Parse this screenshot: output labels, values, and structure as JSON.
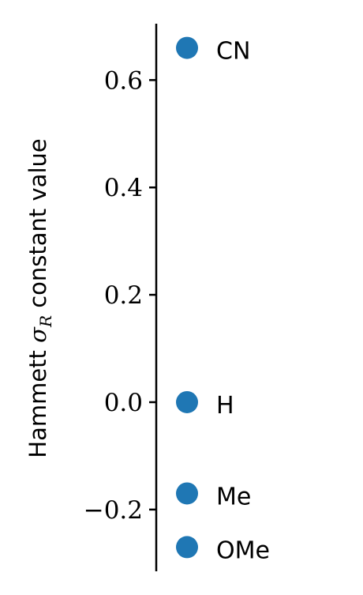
{
  "chart_data": {
    "type": "scatter",
    "ylabel_prefix": "Hammett ",
    "ylabel_symbol": "σ",
    "ylabel_subscript": "R",
    "ylabel_suffix": " constant value",
    "ylim": [
      -0.315,
      0.705
    ],
    "yticks": [
      {
        "value": -0.2,
        "label": "−0.2"
      },
      {
        "value": 0.0,
        "label": "0.0"
      },
      {
        "value": 0.2,
        "label": "0.2"
      },
      {
        "value": 0.4,
        "label": "0.4"
      },
      {
        "value": 0.6,
        "label": "0.6"
      }
    ],
    "points": [
      {
        "label": "CN",
        "y": 0.66
      },
      {
        "label": "H",
        "y": 0.0
      },
      {
        "label": "Me",
        "y": -0.17
      },
      {
        "label": "OMe",
        "y": -0.27
      }
    ],
    "marker_color": "#1f77b4",
    "grid": false,
    "legend": "none"
  }
}
